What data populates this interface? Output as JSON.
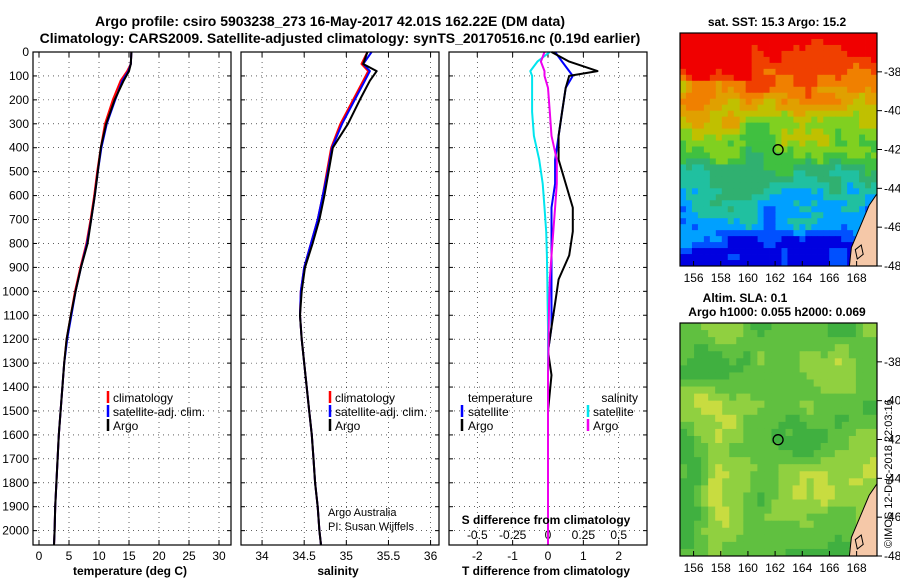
{
  "title": {
    "line1": "Argo profile: csiro 5903238_273 16-May-2017 42.01S 162.22E (DM data)",
    "line2": "Climatology: CARS2009. Satellite-adjusted climatology: synTS_20170516.nc (0.19d earlier)"
  },
  "colors": {
    "climatology": "#ff0000",
    "satellite": "#0000ff",
    "argo": "#000000",
    "sal_sat": "#00e5ee",
    "sal_argo": "#ee00ee"
  },
  "chart_data": [
    {
      "type": "line",
      "name": "temperature",
      "xlabel": "temperature (deg C)",
      "ylabel": "",
      "xlim": [
        -1,
        32
      ],
      "ylim": [
        2060,
        0
      ],
      "xticks": [
        0,
        5,
        10,
        15,
        20,
        25,
        30
      ],
      "yticks": [
        0,
        100,
        200,
        300,
        400,
        500,
        600,
        700,
        800,
        900,
        1000,
        1100,
        1200,
        1300,
        1400,
        1500,
        1600,
        1700,
        1800,
        1900,
        2000
      ],
      "grid": true,
      "legend": {
        "position": "lower-center",
        "entries": [
          "climatology",
          "satellite-adj. clim.",
          "Argo"
        ]
      },
      "series": [
        {
          "name": "climatology",
          "x": [
            15.4,
            15.3,
            14.7,
            13.6,
            12.3,
            11.0,
            10.3,
            9.7,
            9.2,
            8.6,
            7.9,
            6.9,
            6.0,
            5.3,
            4.6,
            4.2,
            3.9,
            3.6,
            3.3,
            3.1,
            2.9,
            2.7,
            2.6,
            2.5
          ],
          "y": [
            0,
            50,
            80,
            120,
            200,
            300,
            400,
            500,
            600,
            700,
            800,
            900,
            1000,
            1100,
            1200,
            1300,
            1400,
            1500,
            1600,
            1700,
            1800,
            1900,
            2000,
            2060
          ]
        },
        {
          "name": "satellite-adj. clim.",
          "x": [
            15.4,
            15.3,
            14.9,
            13.9,
            12.7,
            11.3,
            10.4,
            9.8,
            9.3,
            8.7,
            8.0,
            7.0,
            6.1,
            5.4,
            4.7,
            4.2,
            3.9,
            3.6,
            3.3,
            3.1,
            2.9,
            2.7,
            2.6,
            2.5
          ],
          "y": [
            0,
            50,
            80,
            120,
            200,
            300,
            400,
            500,
            600,
            700,
            800,
            900,
            1000,
            1100,
            1200,
            1300,
            1400,
            1500,
            1600,
            1700,
            1800,
            1900,
            2000,
            2060
          ]
        },
        {
          "name": "Argo",
          "x": [
            15.4,
            15.3,
            15.0,
            14.1,
            12.6,
            11.2,
            10.3,
            9.8,
            9.3,
            8.7,
            8.1,
            7.0,
            6.1,
            5.3,
            4.6,
            4.2,
            3.9,
            3.6,
            3.3,
            3.1,
            2.9,
            2.7,
            2.6,
            2.5
          ],
          "y": [
            0,
            50,
            80,
            120,
            200,
            300,
            400,
            500,
            600,
            700,
            800,
            900,
            1000,
            1100,
            1200,
            1300,
            1400,
            1500,
            1600,
            1700,
            1800,
            1900,
            2000,
            2060
          ]
        }
      ]
    },
    {
      "type": "line",
      "name": "salinity",
      "xlabel": "salinity",
      "ylabel": "",
      "xlim": [
        33.75,
        36.1
      ],
      "ylim": [
        2060,
        0
      ],
      "xticks": [
        34,
        34.5,
        35,
        35.5,
        36
      ],
      "xticklabels": [
        "34",
        "34.5",
        "35",
        "35.5",
        "36"
      ],
      "grid": true,
      "legend": {
        "position": "lower-center",
        "entries": [
          "climatology",
          "satellite-adj. clim.",
          "Argo"
        ]
      },
      "annotation": [
        "Argo Australia",
        "PI: Susan Wijffels"
      ],
      "series": [
        {
          "name": "climatology",
          "x": [
            35.25,
            35.18,
            35.26,
            35.2,
            35.08,
            34.93,
            34.82,
            34.77,
            34.72,
            34.66,
            34.58,
            34.5,
            34.46,
            34.45,
            34.47,
            34.5,
            34.53,
            34.56,
            34.59,
            34.61,
            34.63,
            34.66,
            34.68,
            34.7
          ],
          "y": [
            0,
            50,
            80,
            120,
            200,
            300,
            400,
            500,
            600,
            700,
            800,
            900,
            1000,
            1100,
            1200,
            1300,
            1400,
            1500,
            1600,
            1700,
            1800,
            1900,
            2000,
            2060
          ]
        },
        {
          "name": "satellite-adj. clim.",
          "x": [
            35.3,
            35.2,
            35.28,
            35.22,
            35.1,
            34.95,
            34.83,
            34.78,
            34.72,
            34.66,
            34.58,
            34.5,
            34.46,
            34.45,
            34.47,
            34.5,
            34.53,
            34.56,
            34.59,
            34.61,
            34.63,
            34.66,
            34.68,
            34.7
          ],
          "y": [
            0,
            50,
            80,
            120,
            200,
            300,
            400,
            500,
            600,
            700,
            800,
            900,
            1000,
            1100,
            1200,
            1300,
            1400,
            1500,
            1600,
            1700,
            1800,
            1900,
            2000,
            2060
          ]
        },
        {
          "name": "Argo",
          "x": [
            35.25,
            35.2,
            35.36,
            35.28,
            35.16,
            35.02,
            34.84,
            34.79,
            34.74,
            34.68,
            34.6,
            34.51,
            34.47,
            34.45,
            34.47,
            34.5,
            34.53,
            34.56,
            34.59,
            34.61,
            34.63,
            34.66,
            34.68,
            34.7
          ],
          "y": [
            0,
            50,
            80,
            120,
            200,
            300,
            400,
            500,
            600,
            700,
            800,
            900,
            1000,
            1100,
            1200,
            1300,
            1400,
            1500,
            1600,
            1700,
            1800,
            1900,
            2000,
            2060
          ]
        }
      ]
    },
    {
      "type": "line",
      "name": "difference from climatology",
      "xlabel": "T difference from climatology",
      "xlabel_top": "S difference from climatology",
      "ylabel": "",
      "xlim": [
        -2.8,
        2.8
      ],
      "ylim": [
        2060,
        0
      ],
      "xticks": [
        -2,
        -1,
        0,
        1,
        2
      ],
      "sticks": [
        -0.5,
        -0.25,
        0,
        0.25,
        0.5
      ],
      "sticklabels": [
        "-0.5",
        "-0.25",
        "0",
        "0.25",
        "0.5"
      ],
      "grid": true,
      "legend": {
        "position": "lower-center",
        "temperature": {
          "title": "temperature",
          "entries": [
            "satellite",
            "Argo"
          ]
        },
        "salinity": {
          "title": "salinity",
          "entries": [
            "satellite",
            "Argo"
          ]
        }
      },
      "series": [
        {
          "name": "T satellite",
          "x": [
            0.2,
            0.4,
            0.6,
            0.7,
            0.5,
            0.4,
            0.3,
            0.2,
            0.2,
            0.1,
            0.1,
            0.1,
            0.1,
            0.1,
            0.1,
            0.0,
            0.0,
            0.0,
            0.0,
            0.0,
            0.0,
            0.0
          ],
          "y": [
            0,
            40,
            80,
            100,
            150,
            250,
            350,
            450,
            550,
            650,
            750,
            850,
            950,
            1050,
            1150,
            1250,
            1350,
            1500,
            1650,
            1800,
            1950,
            2060
          ]
        },
        {
          "name": "T Argo",
          "x": [
            0.1,
            0.6,
            1.4,
            0.6,
            0.5,
            0.4,
            0.3,
            0.3,
            0.5,
            0.7,
            0.7,
            0.6,
            0.3,
            0.2,
            0.1,
            0.0,
            0.1,
            0.0,
            0.0,
            0.0,
            0.0,
            0.0
          ],
          "y": [
            0,
            40,
            80,
            100,
            150,
            250,
            350,
            450,
            550,
            650,
            750,
            850,
            950,
            1050,
            1150,
            1250,
            1350,
            1500,
            1650,
            1800,
            1950,
            2060
          ]
        },
        {
          "name": "S satellite",
          "x": [
            0.05,
            -0.3,
            -0.5,
            -0.45,
            -0.45,
            -0.45,
            -0.4,
            -0.25,
            -0.15,
            -0.1,
            -0.05,
            -0.03,
            -0.02,
            -0.01,
            0.0,
            0.0,
            0.0,
            0.0,
            0.0,
            0.0,
            0.0,
            0.0
          ],
          "y": [
            0,
            40,
            80,
            100,
            150,
            250,
            350,
            450,
            550,
            650,
            750,
            850,
            950,
            1050,
            1150,
            1250,
            1350,
            1500,
            1650,
            1800,
            1950,
            2060
          ]
        },
        {
          "name": "S Argo",
          "x": [
            -0.1,
            -0.2,
            -0.1,
            -0.1,
            0.0,
            0.05,
            0.1,
            0.25,
            0.25,
            0.2,
            0.15,
            0.1,
            0.05,
            0.03,
            0.02,
            0.01,
            0.0,
            0.0,
            0.0,
            0.0,
            0.0,
            0.0
          ],
          "y": [
            0,
            40,
            80,
            100,
            150,
            250,
            350,
            450,
            550,
            650,
            750,
            850,
            950,
            1050,
            1150,
            1250,
            1350,
            1500,
            1650,
            1800,
            1950,
            2060
          ]
        }
      ]
    },
    {
      "type": "heatmap",
      "name": "sst-map",
      "title": "sat. SST: 15.3 Argo: 15.2",
      "xlim": [
        155,
        169.5
      ],
      "ylim": [
        -48,
        -36
      ],
      "xticks": [
        156,
        158,
        160,
        162,
        164,
        166,
        168
      ],
      "yticks": [
        -38,
        -40,
        -42,
        -44,
        -46,
        -48
      ],
      "marker": {
        "lon": 162.22,
        "lat": -42.01
      }
    },
    {
      "type": "heatmap",
      "name": "sla-map",
      "title_lines": [
        "Altim. SLA: 0.1",
        "Argo h1000: 0.055 h2000: 0.069"
      ],
      "xlim": [
        155,
        169.5
      ],
      "ylim": [
        -48,
        -36
      ],
      "xticks": [
        156,
        158,
        160,
        162,
        164,
        166,
        168
      ],
      "yticks": [
        -38,
        -40,
        -42,
        -44,
        -46,
        -48
      ],
      "marker": {
        "lon": 162.22,
        "lat": -42.01
      }
    }
  ],
  "credit": "©IMOS 12-Dec-2018 22:03:16"
}
